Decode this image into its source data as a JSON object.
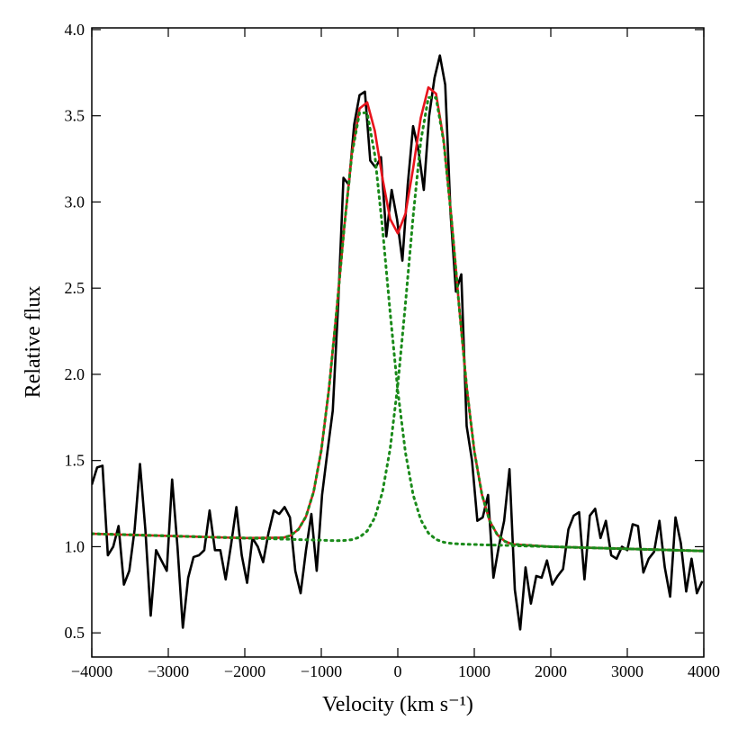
{
  "chart_data": {
    "type": "line",
    "xlabel": "Velocity (km s⁻¹)",
    "ylabel": "Relative flux",
    "xlim": [
      -4000,
      4000
    ],
    "ylim": [
      0.36,
      4.01
    ],
    "xticks": [
      {
        "value": -4000,
        "label": "−4000"
      },
      {
        "value": -3000,
        "label": "−3000"
      },
      {
        "value": -2000,
        "label": "−2000"
      },
      {
        "value": -1000,
        "label": "−1000"
      },
      0,
      1000,
      2000,
      3000,
      4000
    ],
    "yticks": [
      0.5,
      {
        "value": 1.0,
        "label": "1.0"
      },
      1.5,
      {
        "value": 2.0,
        "label": "2.0"
      },
      2.5,
      {
        "value": 3.0,
        "label": "3.0"
      },
      3.5,
      {
        "value": 4.0,
        "label": "4.0"
      }
    ],
    "series": [
      {
        "color": "#000000",
        "dash": "solid",
        "x": [
          -4000,
          -3930,
          -3860,
          -3790,
          -3720,
          -3650,
          -3580,
          -3510,
          -3440,
          -3370,
          -3300,
          -3230,
          -3160,
          -3090,
          -3020,
          -2950,
          -2880,
          -2810,
          -2740,
          -2670,
          -2600,
          -2530,
          -2460,
          -2390,
          -2320,
          -2250,
          -2180,
          -2110,
          -2040,
          -1970,
          -1900,
          -1830,
          -1760,
          -1690,
          -1620,
          -1550,
          -1480,
          -1410,
          -1340,
          -1270,
          -1200,
          -1130,
          -1060,
          -990,
          -920,
          -850,
          -780,
          -710,
          -640,
          -570,
          -500,
          -430,
          -360,
          -290,
          -220,
          -150,
          -80,
          -10,
          60,
          130,
          200,
          270,
          340,
          410,
          480,
          550,
          620,
          690,
          760,
          830,
          900,
          970,
          1040,
          1110,
          1180,
          1250,
          1320,
          1390,
          1460,
          1530,
          1600,
          1670,
          1740,
          1810,
          1880,
          1950,
          2020,
          2090,
          2160,
          2230,
          2300,
          2370,
          2440,
          2510,
          2580,
          2650,
          2720,
          2790,
          2860,
          2930,
          3000,
          3070,
          3140,
          3210,
          3280,
          3350,
          3420,
          3490,
          3560,
          3630,
          3700,
          3770,
          3840,
          3910,
          3980
        ],
        "values": [
          1.36,
          1.46,
          1.47,
          0.95,
          1.0,
          1.12,
          0.78,
          0.86,
          1.1,
          1.48,
          1.1,
          0.6,
          0.98,
          0.92,
          0.86,
          1.39,
          1.0,
          0.53,
          0.82,
          0.94,
          0.95,
          0.98,
          1.21,
          0.98,
          0.98,
          0.81,
          1.01,
          1.23,
          0.95,
          0.79,
          1.05,
          1.0,
          0.91,
          1.08,
          1.21,
          1.19,
          1.23,
          1.17,
          0.86,
          0.73,
          0.98,
          1.19,
          0.86,
          1.3,
          1.55,
          1.79,
          2.4,
          3.14,
          3.1,
          3.45,
          3.62,
          3.64,
          3.24,
          3.2,
          3.26,
          2.8,
          3.07,
          2.9,
          2.66,
          3.1,
          3.44,
          3.3,
          3.07,
          3.5,
          3.72,
          3.85,
          3.68,
          2.93,
          2.48,
          2.58,
          1.7,
          1.5,
          1.15,
          1.17,
          1.3,
          0.82,
          1.0,
          1.15,
          1.45,
          0.75,
          0.52,
          0.88,
          0.67,
          0.83,
          0.82,
          0.92,
          0.78,
          0.83,
          0.87,
          1.1,
          1.18,
          1.2,
          0.81,
          1.18,
          1.22,
          1.05,
          1.15,
          0.95,
          0.93,
          1.0,
          0.98,
          1.13,
          1.12,
          0.85,
          0.93,
          0.97,
          1.15,
          0.88,
          0.71,
          1.17,
          1.02,
          0.74,
          0.93,
          0.73,
          0.8
        ]
      },
      {
        "color": "#e8141c",
        "dash": "solid",
        "x": [
          -4000,
          -3000,
          -2000,
          -1500,
          -1400,
          -1300,
          -1200,
          -1100,
          -1000,
          -900,
          -800,
          -700,
          -600,
          -500,
          -400,
          -300,
          -200,
          -100,
          0,
          100,
          200,
          300,
          400,
          500,
          600,
          700,
          800,
          900,
          1000,
          1100,
          1200,
          1300,
          1400,
          1500,
          2000,
          3000,
          4000
        ],
        "values": [
          1.075,
          1.0625,
          1.05,
          1.052,
          1.065,
          1.1,
          1.175,
          1.319,
          1.559,
          1.915,
          2.368,
          2.855,
          3.283,
          3.542,
          3.578,
          3.412,
          3.137,
          2.901,
          2.818,
          2.932,
          3.194,
          3.488,
          3.665,
          3.628,
          3.358,
          2.911,
          2.402,
          1.928,
          1.555,
          1.302,
          1.15,
          1.07,
          1.031,
          1.014,
          1.0,
          0.9875,
          0.975
        ]
      },
      {
        "color": "#1a8a1a",
        "dash": "dotted",
        "x": [
          -4000,
          -3000,
          -2000,
          -1500,
          -1400,
          -1300,
          -1200,
          -1100,
          -1000,
          -900,
          -800,
          -700,
          -600,
          -500,
          -400,
          -300,
          -200,
          -100,
          0,
          100,
          200,
          300,
          400,
          500,
          600,
          700,
          800,
          900,
          1000,
          1100,
          1200,
          1300,
          1400,
          1500,
          2000,
          3000,
          4000
        ],
        "values": [
          1.075,
          1.0625,
          1.05,
          1.052,
          1.065,
          1.1,
          1.175,
          1.319,
          1.559,
          1.915,
          2.368,
          2.853,
          3.275,
          3.518,
          3.517,
          3.272,
          2.847,
          2.359,
          1.904,
          1.546,
          1.302,
          1.156,
          1.079,
          1.042,
          1.026,
          1.019,
          1.016,
          1.014,
          1.013,
          1.011,
          1.01,
          1.009,
          1.008,
          1.006,
          1.0,
          0.9875,
          0.975
        ]
      },
      {
        "color": "#1a8a1a",
        "dash": "dotted",
        "x": [
          -4000,
          -3000,
          -2000,
          -1500,
          -1400,
          -1300,
          -1200,
          -1100,
          -1000,
          -900,
          -800,
          -700,
          -600,
          -500,
          -400,
          -300,
          -200,
          -100,
          0,
          100,
          200,
          300,
          400,
          500,
          600,
          700,
          800,
          900,
          1000,
          1100,
          1200,
          1300,
          1400,
          1500,
          2000,
          3000,
          4000
        ],
        "values": [
          1.075,
          1.0625,
          1.05,
          1.044,
          1.043,
          1.041,
          1.04,
          1.039,
          1.038,
          1.036,
          1.035,
          1.036,
          1.041,
          1.055,
          1.091,
          1.169,
          1.318,
          1.568,
          1.939,
          2.41,
          2.914,
          3.353,
          3.606,
          3.605,
          3.35,
          2.908,
          2.401,
          1.928,
          1.555,
          1.302,
          1.15,
          1.07,
          1.031,
          1.014,
          1.0,
          0.9875,
          0.975
        ]
      }
    ]
  }
}
